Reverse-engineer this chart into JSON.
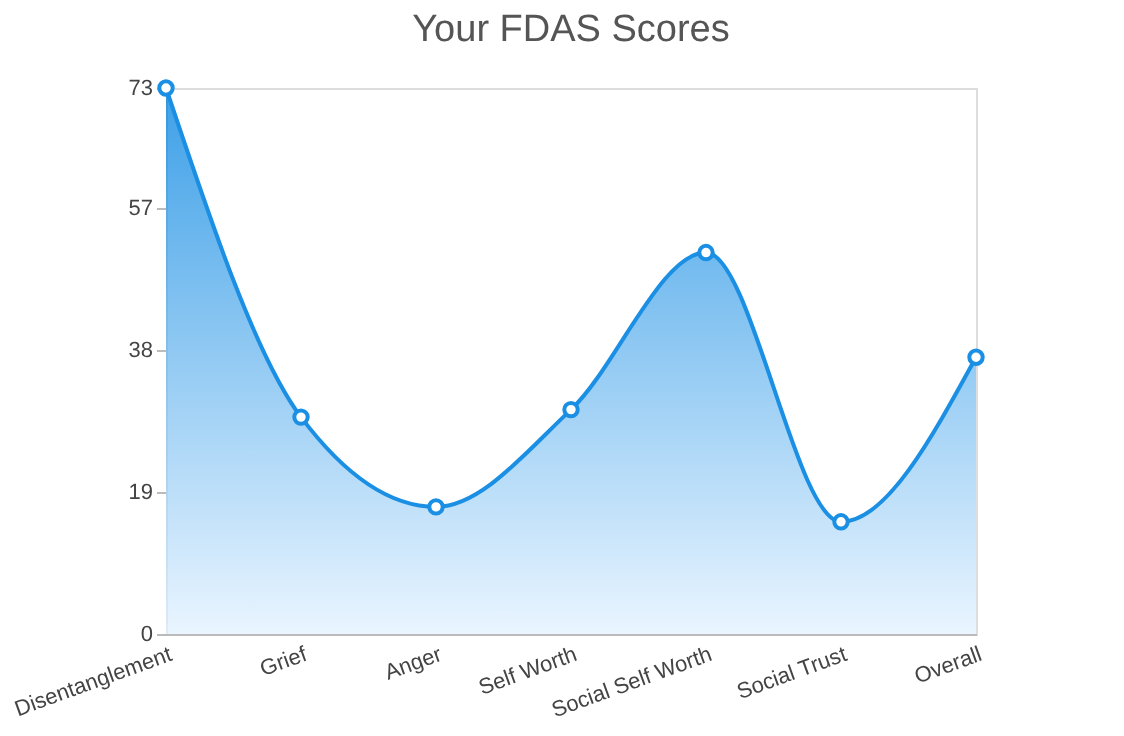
{
  "chart_data": {
    "type": "area",
    "title": "Your FDAS Scores",
    "categories": [
      "Disentanglement",
      "Grief",
      "Anger",
      "Self Worth",
      "Social Self Worth",
      "Social Trust",
      "Overall"
    ],
    "series": [
      {
        "color": "#1a8fe3",
        "values": [
          73,
          29,
          17,
          30,
          51,
          15,
          37
        ]
      }
    ],
    "ylim": [
      0,
      73
    ],
    "yticks": [
      0,
      19,
      38,
      57,
      73
    ],
    "grid": false,
    "marker": "circle"
  }
}
